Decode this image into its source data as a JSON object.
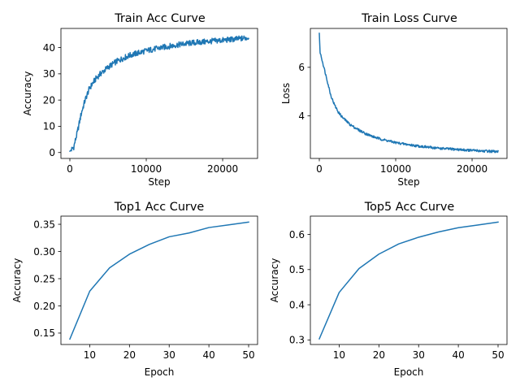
{
  "figure": {
    "line_color": "#1f77b4"
  },
  "chart_data": [
    {
      "type": "line",
      "title": "Train Acc Curve",
      "xlabel": "Step",
      "ylabel": "Accuracy",
      "xlim": [
        -1170,
        24570
      ],
      "ylim": [
        -2.25,
        47.3
      ],
      "xticks": [
        0,
        10000,
        20000
      ],
      "xtick_labels": [
        "0",
        "10000",
        "20000"
      ],
      "yticks": [
        0,
        10,
        20,
        30,
        40
      ],
      "ytick_labels": [
        "0",
        "10",
        "20",
        "30",
        "40"
      ],
      "grid": false,
      "series": [
        {
          "x": [
            0,
            500,
            1000,
            1500,
            2000,
            2500,
            3000,
            3500,
            4000,
            5000,
            6000,
            7000,
            8000,
            9000,
            10000,
            12000,
            14000,
            16000,
            18000,
            20000,
            22000,
            23400
          ],
          "y": [
            0.5,
            2,
            8,
            15,
            20,
            24,
            26.5,
            28.5,
            30,
            32.5,
            34.5,
            36,
            37.2,
            38,
            38.8,
            40,
            41,
            41.8,
            42.3,
            42.8,
            43.3,
            43.8
          ]
        }
      ]
    },
    {
      "type": "line",
      "title": "Train Loss Curve",
      "xlabel": "Step",
      "ylabel": "Loss",
      "xlim": [
        -1170,
        24570
      ],
      "ylim": [
        2.25,
        7.6
      ],
      "xticks": [
        0,
        10000,
        20000
      ],
      "xtick_labels": [
        "0",
        "10000",
        "20000"
      ],
      "yticks": [
        4,
        6
      ],
      "ytick_labels": [
        "4",
        "6"
      ],
      "grid": false,
      "series": [
        {
          "x": [
            0,
            100,
            200,
            600,
            1000,
            1500,
            2000,
            2500,
            3000,
            4000,
            5000,
            6000,
            7000,
            8000,
            10000,
            12000,
            14000,
            16000,
            18000,
            20000,
            22000,
            23400
          ],
          "y": [
            7.4,
            6.6,
            6.5,
            6.0,
            5.5,
            4.85,
            4.45,
            4.15,
            3.95,
            3.65,
            3.45,
            3.28,
            3.15,
            3.05,
            2.9,
            2.8,
            2.72,
            2.66,
            2.62,
            2.58,
            2.55,
            2.52
          ]
        }
      ]
    },
    {
      "type": "line",
      "title": "Top1 Acc Curve",
      "xlabel": "Epoch",
      "ylabel": "Accuracy",
      "xlim": [
        2.75,
        52.25
      ],
      "ylim": [
        0.129,
        0.365
      ],
      "xticks": [
        10,
        20,
        30,
        40,
        50
      ],
      "xtick_labels": [
        "10",
        "20",
        "30",
        "40",
        "50"
      ],
      "yticks": [
        0.15,
        0.2,
        0.25,
        0.3,
        0.35
      ],
      "ytick_labels": [
        "0.15",
        "0.20",
        "0.25",
        "0.30",
        "0.35"
      ],
      "grid": false,
      "series": [
        {
          "x": [
            5,
            10,
            15,
            20,
            25,
            30,
            35,
            40,
            45,
            50
          ],
          "y": [
            0.139,
            0.227,
            0.27,
            0.295,
            0.313,
            0.327,
            0.334,
            0.344,
            0.349,
            0.354
          ]
        }
      ]
    },
    {
      "type": "line",
      "title": "Top5 Acc Curve",
      "xlabel": "Epoch",
      "ylabel": "Accuracy",
      "xlim": [
        2.75,
        52.25
      ],
      "ylim": [
        0.287,
        0.652
      ],
      "xticks": [
        10,
        20,
        30,
        40,
        50
      ],
      "xtick_labels": [
        "10",
        "20",
        "30",
        "40",
        "50"
      ],
      "yticks": [
        0.3,
        0.4,
        0.5,
        0.6
      ],
      "ytick_labels": [
        "0.3",
        "0.4",
        "0.5",
        "0.6"
      ],
      "grid": false,
      "series": [
        {
          "x": [
            5,
            10,
            15,
            20,
            25,
            30,
            35,
            40,
            45,
            50
          ],
          "y": [
            0.303,
            0.435,
            0.503,
            0.544,
            0.573,
            0.592,
            0.607,
            0.619,
            0.627,
            0.635
          ]
        }
      ]
    }
  ]
}
